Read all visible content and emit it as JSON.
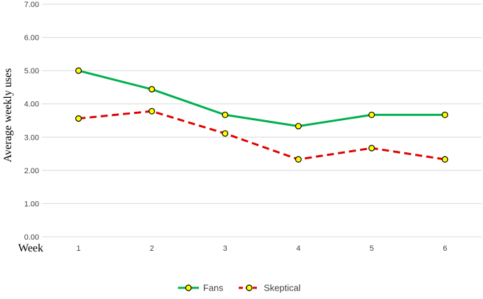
{
  "chart_data": {
    "type": "line",
    "x": [
      1,
      2,
      3,
      4,
      5,
      6
    ],
    "categories": [
      "1",
      "2",
      "3",
      "4",
      "5",
      "6"
    ],
    "series": [
      {
        "name": "Fans",
        "values": [
          5.0,
          4.44,
          3.67,
          3.33,
          3.67,
          3.67
        ],
        "color": "#00B050",
        "style": "solid"
      },
      {
        "name": "Skeptical",
        "values": [
          3.56,
          3.78,
          3.11,
          2.33,
          2.67,
          2.33
        ],
        "color": "#E00000",
        "style": "dashed"
      }
    ],
    "marker_fill": "#FFFF00",
    "marker_stroke": "#000000",
    "ylim": [
      0,
      7
    ],
    "yticks": [
      "0.00",
      "1.00",
      "2.00",
      "3.00",
      "4.00",
      "5.00",
      "6.00",
      "7.00"
    ],
    "xlabel": "Week",
    "ylabel": "Average weekly uses",
    "grid": true,
    "legend": "bottom"
  }
}
